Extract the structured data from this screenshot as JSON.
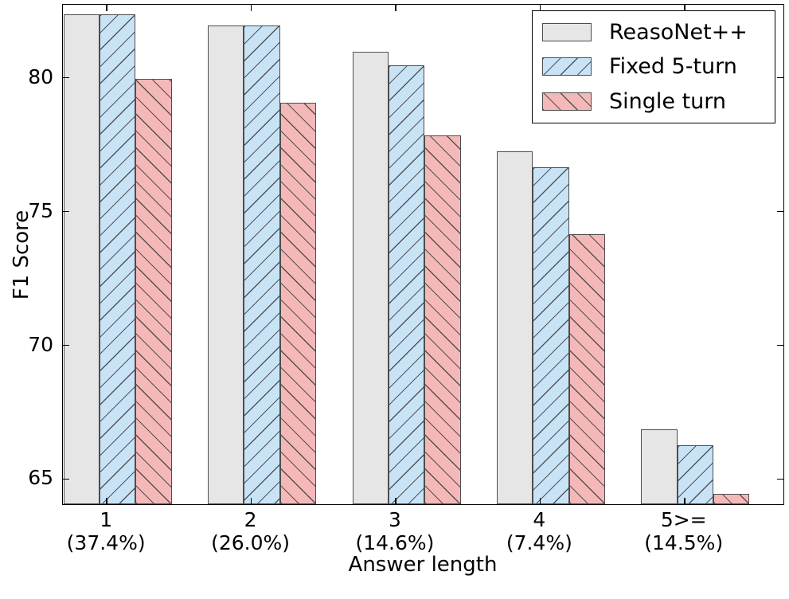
{
  "chart_data": {
    "type": "bar",
    "title": "",
    "xlabel": "Answer length",
    "ylabel": "F1 Score",
    "categories": [
      "1",
      "2",
      "3",
      "4",
      "5>="
    ],
    "category_sublabels": [
      "(37.4%)",
      "(26.0%)",
      "(14.6%)",
      "(7.4%)",
      "(14.5%)"
    ],
    "series": [
      {
        "name": "ReasoNet++",
        "color": "#e6e6e6",
        "hatch": "none",
        "values": [
          82.3,
          81.9,
          80.9,
          77.2,
          66.8
        ]
      },
      {
        "name": "Fixed 5-turn",
        "color": "#c9e3f6",
        "hatch": "/",
        "values": [
          82.3,
          81.9,
          80.4,
          76.6,
          66.2
        ]
      },
      {
        "name": "Single turn",
        "color": "#f5b8b8",
        "hatch": "\\",
        "values": [
          79.9,
          79.0,
          77.8,
          74.1,
          64.4
        ]
      }
    ],
    "yticks": [
      65,
      70,
      75,
      80
    ],
    "ylim": [
      64.0,
      82.73
    ],
    "xlim": [
      0.696,
      5.696
    ],
    "bar_width": 0.25,
    "bar_offsets": [
      -0.3,
      -0.05,
      0.2
    ],
    "edge_color": "#4d4d4d",
    "hatch_color": "#3c3c3c",
    "frame_color": "#000000",
    "background": "#ffffff",
    "legend_position": "upper right",
    "grid": false
  }
}
